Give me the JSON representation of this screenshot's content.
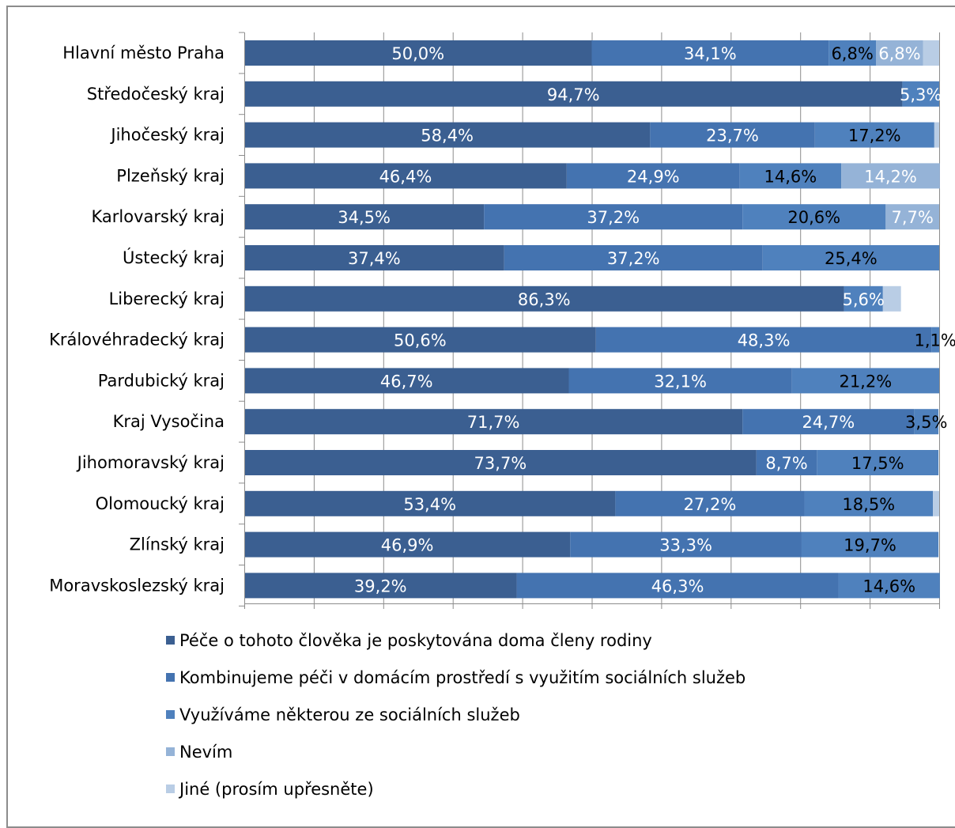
{
  "chart_data": {
    "type": "bar",
    "orientation": "horizontal",
    "stacked": true,
    "percent": true,
    "categories": [
      "Hlavní město Praha",
      "Středočeský kraj",
      "Jihočeský kraj",
      "Plzeňský kraj",
      "Karlovarský kraj",
      "Ústecký kraj",
      "Liberecký kraj",
      "Královéhradecký kraj",
      "Pardubický kraj",
      "Kraj Vysočina",
      "Jihomoravský kraj",
      "Olomoucký kraj",
      "Zlínský kraj",
      "Moravskoslezský kraj"
    ],
    "series": [
      {
        "name": "Péče o tohoto člověka je poskytována doma členy rodiny",
        "color": "#3b5f91",
        "values": [
          50.0,
          94.7,
          58.4,
          46.4,
          34.5,
          37.4,
          86.3,
          50.6,
          46.7,
          71.7,
          73.7,
          53.4,
          46.9,
          39.2
        ],
        "labels": [
          "50,0%",
          "94,7%",
          "58,4%",
          "46,4%",
          "34,5%",
          "37,4%",
          "86,3%",
          "50,6%",
          "46,7%",
          "71,7%",
          "73,7%",
          "53,4%",
          "46,9%",
          "39,2%"
        ]
      },
      {
        "name": "Kombinujeme péči v domácím prostředí s využitím sociálních služeb",
        "color": "#4473b0",
        "values": [
          34.1,
          0,
          23.7,
          24.9,
          37.2,
          37.2,
          0,
          48.3,
          32.1,
          24.7,
          8.7,
          27.2,
          33.3,
          46.3
        ],
        "labels": [
          "34,1%",
          "",
          "23,7%",
          "24,9%",
          "37,2%",
          "37,2%",
          "",
          "48,3%",
          "32,1%",
          "24,7%",
          "8,7%",
          "27,2%",
          "33,3%",
          "46,3%"
        ]
      },
      {
        "name": "Využíváme některou ze sociálních služeb",
        "color": "#4f81bd",
        "values": [
          6.8,
          5.3,
          17.2,
          14.6,
          20.6,
          25.4,
          5.6,
          1.1,
          21.2,
          3.5,
          17.5,
          18.5,
          19.7,
          14.6
        ],
        "labels": [
          "6,8%",
          "5,3%",
          "17,2%",
          "14,6%",
          "20,6%",
          "25,4%",
          "5,6%",
          "1,1%",
          "21,2%",
          "3,5%",
          "17,5%",
          "18,5%",
          "19,7%",
          "14,6%"
        ]
      },
      {
        "name": "Nevím",
        "color": "#95b3d7",
        "values": [
          6.8,
          0,
          0,
          14.2,
          7.7,
          0,
          0,
          0,
          0,
          0,
          0,
          0,
          0,
          0
        ],
        "labels": [
          "6,8%",
          "",
          "",
          "14,2%",
          "7,7%",
          "",
          "",
          "",
          "",
          "",
          "",
          "",
          "",
          ""
        ]
      },
      {
        "name": "Jiné (prosím upřesněte)",
        "color": "#b9cde5",
        "values": [
          2.3,
          0,
          0.7,
          0,
          0,
          0,
          2.6,
          0,
          0,
          0,
          0,
          0.9,
          0,
          0
        ],
        "labels": [
          "",
          "",
          "",
          "",
          "",
          "",
          "",
          "",
          "",
          "",
          "",
          "",
          "",
          ""
        ]
      }
    ],
    "label_colors": [
      [
        "#ffffff",
        "#ffffff",
        "#000000",
        "#ffffff",
        "#000000"
      ],
      [
        "#ffffff",
        "#ffffff",
        "#ffffff",
        "#000000",
        "#000000"
      ],
      [
        "#ffffff",
        "#ffffff",
        "#000000",
        "#000000",
        "#000000"
      ],
      [
        "#ffffff",
        "#ffffff",
        "#000000",
        "#ffffff",
        "#000000"
      ],
      [
        "#ffffff",
        "#ffffff",
        "#000000",
        "#ffffff",
        "#000000"
      ],
      [
        "#ffffff",
        "#ffffff",
        "#000000",
        "#000000",
        "#000000"
      ],
      [
        "#ffffff",
        "#ffffff",
        "#ffffff",
        "#000000",
        "#000000"
      ],
      [
        "#ffffff",
        "#ffffff",
        "#000000",
        "#000000",
        "#000000"
      ],
      [
        "#ffffff",
        "#ffffff",
        "#000000",
        "#000000",
        "#000000"
      ],
      [
        "#ffffff",
        "#ffffff",
        "#000000",
        "#000000",
        "#000000"
      ],
      [
        "#ffffff",
        "#ffffff",
        "#000000",
        "#000000",
        "#000000"
      ],
      [
        "#ffffff",
        "#ffffff",
        "#000000",
        "#000000",
        "#000000"
      ],
      [
        "#ffffff",
        "#ffffff",
        "#000000",
        "#000000",
        "#000000"
      ],
      [
        "#ffffff",
        "#ffffff",
        "#000000",
        "#000000",
        "#000000"
      ]
    ],
    "xlim": [
      0,
      100
    ],
    "grid": true,
    "legend_position": "bottom",
    "title": "",
    "xlabel": "",
    "ylabel": ""
  }
}
